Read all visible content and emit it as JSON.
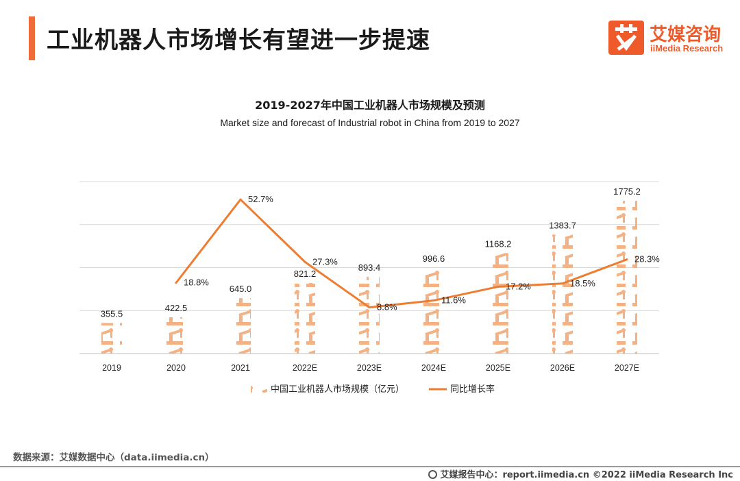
{
  "header": {
    "title": "工业机器人市场增长有望进一步提速",
    "logo_cn": "艾媒咨询",
    "logo_en": "iiMedia Research",
    "logo_icon": "ai-glyph-icon",
    "accent_color": "#ef6c3a"
  },
  "chart_data": {
    "type": "bar",
    "title": "2019-2027年中国工业机器人市场规模及预测",
    "subtitle": "Market size and forecast of Industrial robot in China from 2019 to 2027",
    "categories": [
      "2019",
      "2020",
      "2021",
      "2022E",
      "2023E",
      "2024E",
      "2025E",
      "2026E",
      "2027E"
    ],
    "series": [
      {
        "name": "中国工业机器人市场规模（亿元）",
        "type": "bar",
        "values": [
          355.5,
          422.5,
          645.0,
          821.2,
          893.4,
          996.6,
          1168.2,
          1383.7,
          1775.2
        ],
        "labels": [
          "355.5",
          "422.5",
          "645.0",
          "821.2",
          "893.4",
          "996.6",
          "1168.2",
          "1383.7",
          "1775.2"
        ],
        "color": "#f4b183"
      },
      {
        "name": "同比增长率",
        "type": "line",
        "values": [
          null,
          18.8,
          52.7,
          27.3,
          8.8,
          11.6,
          17.2,
          18.5,
          28.3
        ],
        "labels": [
          "",
          "18.8%",
          "52.7%",
          "27.3%",
          "8.8%",
          "11.6%",
          "17.2%",
          "18.5%",
          "28.3%"
        ],
        "color": "#ed7d31"
      }
    ],
    "ylim": [
      0,
      2000
    ],
    "y2lim": [
      -10,
      60
    ],
    "grid": true,
    "legend": "bottom"
  },
  "footer": {
    "source": "数据来源：艾媒数据中心（data.iimedia.cn）",
    "report": "艾媒报告中心：report.iimedia.cn  ©2022  iiMedia Research  Inc",
    "report_icon": "globe-icon"
  }
}
